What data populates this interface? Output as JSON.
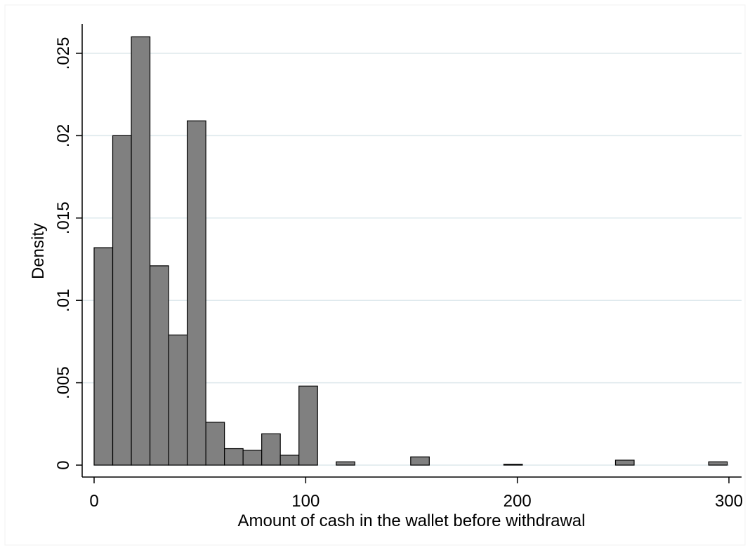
{
  "chart_data": {
    "type": "bar",
    "subtype": "histogram",
    "title": "",
    "xlabel": "Amount of cash in the wallet before withdrawal",
    "ylabel": "Density",
    "xlim": [
      0,
      300
    ],
    "ylim": [
      0,
      0.025
    ],
    "x_ticks": [
      {
        "value": 0,
        "label": "0"
      },
      {
        "value": 100,
        "label": "100"
      },
      {
        "value": 200,
        "label": "200"
      },
      {
        "value": 300,
        "label": "300"
      }
    ],
    "y_ticks": [
      {
        "value": 0,
        "label": "0"
      },
      {
        "value": 0.005,
        "label": ".005"
      },
      {
        "value": 0.01,
        "label": ".01"
      },
      {
        "value": 0.015,
        "label": ".015"
      },
      {
        "value": 0.02,
        "label": ".02"
      },
      {
        "value": 0.025,
        "label": ".025"
      }
    ],
    "grid": true,
    "legend": "none",
    "bin_width": 8.8,
    "bins": [
      {
        "start": 0,
        "end": 8.8,
        "density": 0.0132
      },
      {
        "start": 8.8,
        "end": 17.6,
        "density": 0.02
      },
      {
        "start": 17.6,
        "end": 26.4,
        "density": 0.026
      },
      {
        "start": 26.4,
        "end": 35.2,
        "density": 0.0121
      },
      {
        "start": 35.2,
        "end": 44.0,
        "density": 0.0079
      },
      {
        "start": 44.0,
        "end": 52.8,
        "density": 0.0209
      },
      {
        "start": 52.8,
        "end": 61.6,
        "density": 0.0026
      },
      {
        "start": 61.6,
        "end": 70.4,
        "density": 0.001
      },
      {
        "start": 70.4,
        "end": 79.2,
        "density": 0.0009
      },
      {
        "start": 79.2,
        "end": 88.0,
        "density": 0.0019
      },
      {
        "start": 88.0,
        "end": 96.8,
        "density": 0.0006
      },
      {
        "start": 96.8,
        "end": 105.6,
        "density": 0.0048
      },
      {
        "start": 114.4,
        "end": 123.2,
        "density": 0.0002
      },
      {
        "start": 149.6,
        "end": 158.4,
        "density": 0.0005
      },
      {
        "start": 193.6,
        "end": 202.4,
        "density": 5e-05
      },
      {
        "start": 246.4,
        "end": 255.2,
        "density": 0.0003
      },
      {
        "start": 290.4,
        "end": 299.2,
        "density": 0.0002
      }
    ],
    "colors": {
      "bar_fill": "#808080",
      "bar_stroke": "#000000",
      "grid": "#dde8ec",
      "axis": "#000000",
      "background": "#ffffff"
    }
  }
}
